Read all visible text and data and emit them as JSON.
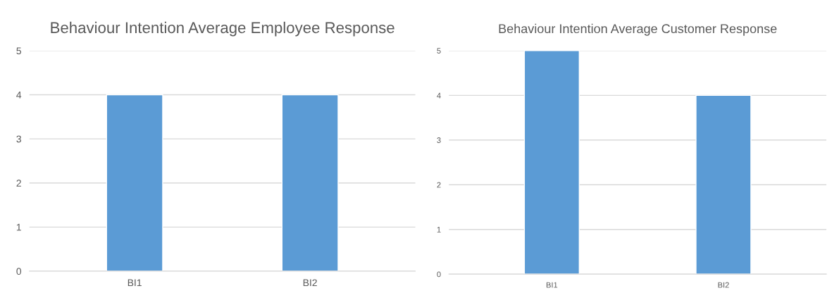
{
  "chart_data": [
    {
      "type": "bar",
      "title": "Behaviour Intention Average Employee Response",
      "categories": [
        "BI1",
        "BI2"
      ],
      "values": [
        4,
        4
      ],
      "color": "#5b9bd5",
      "ylim": [
        0,
        5
      ],
      "yticks": [
        0,
        1,
        2,
        3,
        4,
        5
      ],
      "grid": "y"
    },
    {
      "type": "bar",
      "title": "Behaviour Intention Average Customer Response",
      "categories": [
        "BI1",
        "BI2"
      ],
      "values": [
        5,
        4
      ],
      "color": "#5b9bd5",
      "ylim": [
        0,
        5
      ],
      "yticks": [
        0,
        1,
        2,
        3,
        4,
        5
      ],
      "grid": "y"
    }
  ]
}
